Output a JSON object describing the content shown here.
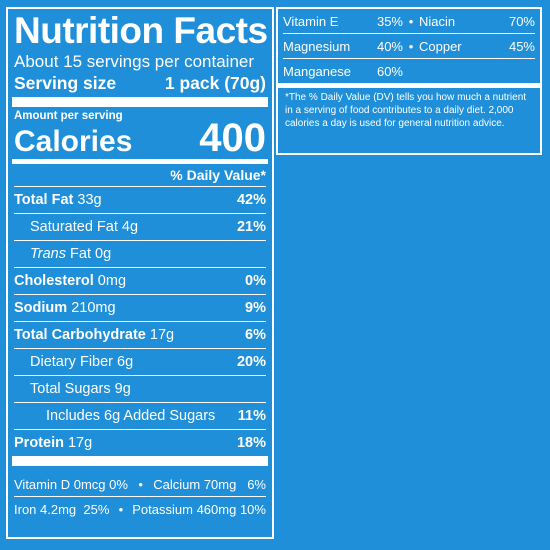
{
  "title": "Nutrition Facts",
  "servings": "About 15 servings per container",
  "serving_size_label": "Serving size",
  "serving_size_value": "1 pack (70g)",
  "amount_per_serving": "Amount per serving",
  "calories_label": "Calories",
  "calories_value": "400",
  "daily_value_header": "% Daily Value*",
  "nutrients": {
    "total_fat": {
      "name": "Total Fat",
      "amount": "33g",
      "dv": "42%"
    },
    "saturated_fat": {
      "name": "Saturated Fat",
      "amount": "4g",
      "dv": "21%"
    },
    "trans_fat": {
      "name_italic": "Trans",
      "name": "Fat",
      "amount": "0g"
    },
    "cholesterol": {
      "name": "Cholesterol",
      "amount": "0mg",
      "dv": "0%"
    },
    "sodium": {
      "name": "Sodium",
      "amount": "210mg",
      "dv": "9%"
    },
    "total_carb": {
      "name": "Total Carbohydrate",
      "amount": "17g",
      "dv": "6%"
    },
    "dietary_fiber": {
      "name": "Dietary Fiber",
      "amount": "6g",
      "dv": "20%"
    },
    "total_sugars": {
      "name": "Total Sugars",
      "amount": "9g"
    },
    "added_sugars": {
      "text": "Includes 6g Added Sugars",
      "dv": "11%"
    },
    "protein": {
      "name": "Protein",
      "amount": "17g",
      "dv": "18%"
    }
  },
  "vitamins_main": [
    {
      "left": "Vitamin D 0mcg",
      "left_dv": "0%",
      "right": "Calcium 70mg",
      "right_dv": "6%"
    },
    {
      "left": "Iron 4.2mg",
      "left_dv": "25%",
      "right": "Potassium 460mg",
      "right_dv": "10%"
    }
  ],
  "separator": "•",
  "vitamins_side": [
    {
      "left": "Vitamin E",
      "left_dv": "35%",
      "right": "Niacin",
      "right_dv": "70%"
    },
    {
      "left": "Magnesium",
      "left_dv": "40%",
      "right": "Copper",
      "right_dv": "45%"
    },
    {
      "left": "Manganese",
      "left_dv": "60%"
    }
  ],
  "footnote": "*The % Daily Value (DV) tells you how much a nutrient in a serving of food contributes to a daily diet. 2,000 calories a day is used for general nutrition advice.",
  "colors": {
    "background": "#1e8fd8",
    "foreground": "#ffffff"
  }
}
